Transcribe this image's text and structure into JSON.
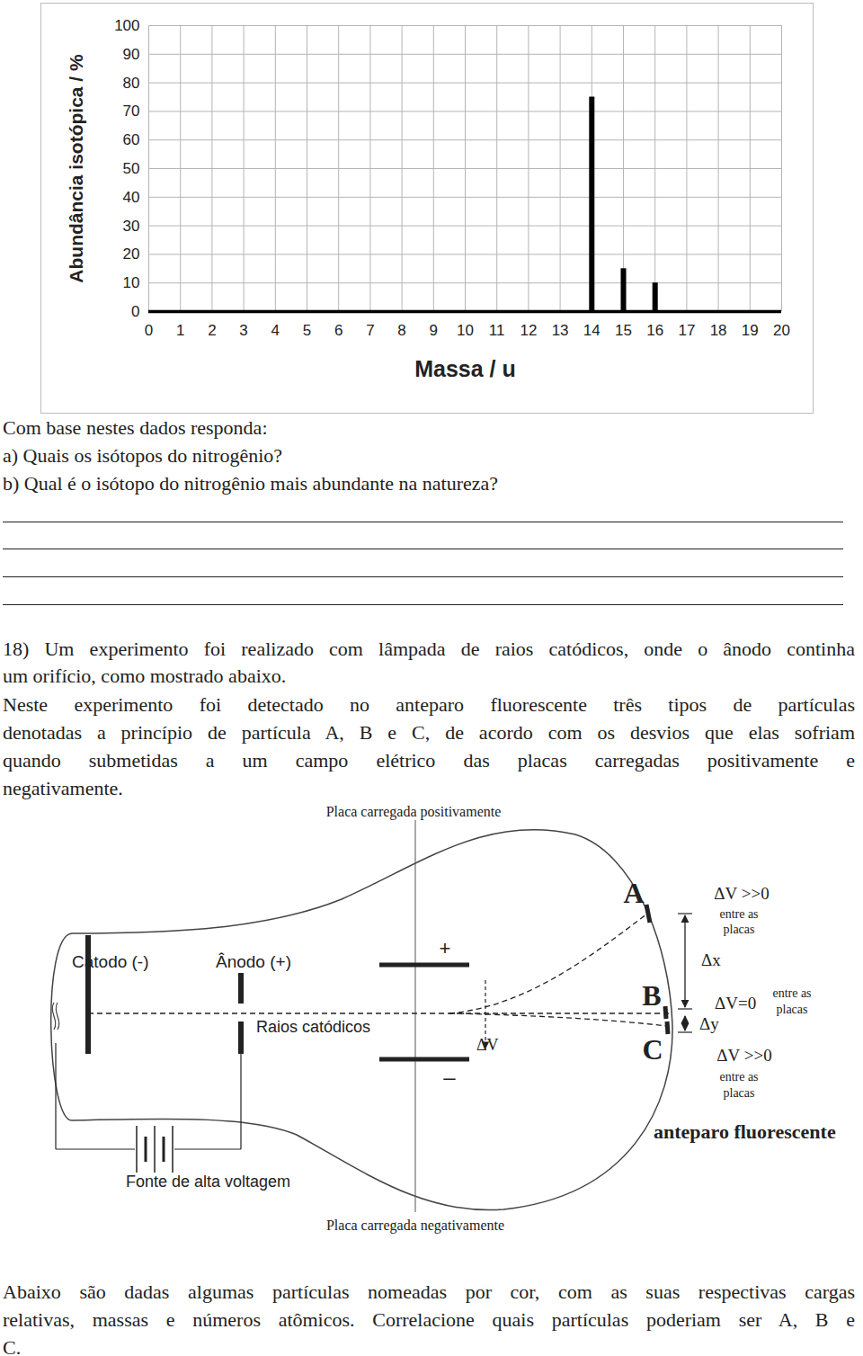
{
  "chart_data": {
    "type": "bar",
    "x": [
      14,
      15,
      16
    ],
    "values": [
      75,
      15,
      10
    ],
    "color": "#000000",
    "xlabel": "Massa / u",
    "ylabel": "Abundância isotópica / %",
    "xlim": [
      0,
      20
    ],
    "xticks": [
      0,
      1,
      2,
      3,
      4,
      5,
      6,
      7,
      8,
      9,
      10,
      11,
      12,
      13,
      14,
      15,
      16,
      17,
      18,
      19,
      20
    ],
    "ylim": [
      0,
      100
    ],
    "yticks": [
      0,
      10,
      20,
      30,
      40,
      50,
      60,
      70,
      80,
      90,
      100
    ],
    "grid": true
  },
  "questions": {
    "intro": "Com base nestes dados responda:",
    "items": [
      "a) Quais os isótopos do nitrogênio?",
      "b) Qual é o isótopo do nitrogênio mais abundante na natureza?"
    ]
  },
  "problem": {
    "lines": [
      "18) Um experimento foi realizado com lâmpada de raios catódicos, onde o ânodo continha",
      "um orifício, como mostrado abaixo.",
      "Neste experimento foi detectado no anteparo fluorescente três tipos de partículas",
      "denotadas a princípio de partícula A, B e C, de acordo com os desvios que elas sofriam",
      "quando submetidas a um campo elétrico das placas carregadas positivamente e",
      "negativamente."
    ]
  },
  "diagram": {
    "plate_positive": "Placa carregada positivamente",
    "plate_negative": "Placa carregada negativamente",
    "cathode": "Cátodo (-)",
    "anode": "Ânodo (+)",
    "rays": "Raios catódicos",
    "plus": "+",
    "minus": "–",
    "delta_v": "ΔV",
    "particles": [
      "A",
      "B",
      "C"
    ],
    "conditions": [
      {
        "label": "ΔV >>0",
        "note": [
          "entre as",
          "placas"
        ]
      },
      {
        "label": "ΔV=0",
        "note": [
          "entre as",
          "placas"
        ]
      },
      {
        "label": "ΔV >>0",
        "note": [
          "entre as",
          "placas"
        ]
      }
    ],
    "delta_x": "Δx",
    "delta_y": "Δy",
    "screen": "anteparo fluorescente",
    "source": "Fonte de alta voltagem"
  },
  "closing": {
    "lines": [
      "Abaixo são dadas algumas partículas nomeadas por cor, com as suas respectivas cargas",
      "relativas, massas e números atômicos. Correlacione quais partículas poderiam ser A, B e",
      "C."
    ]
  }
}
